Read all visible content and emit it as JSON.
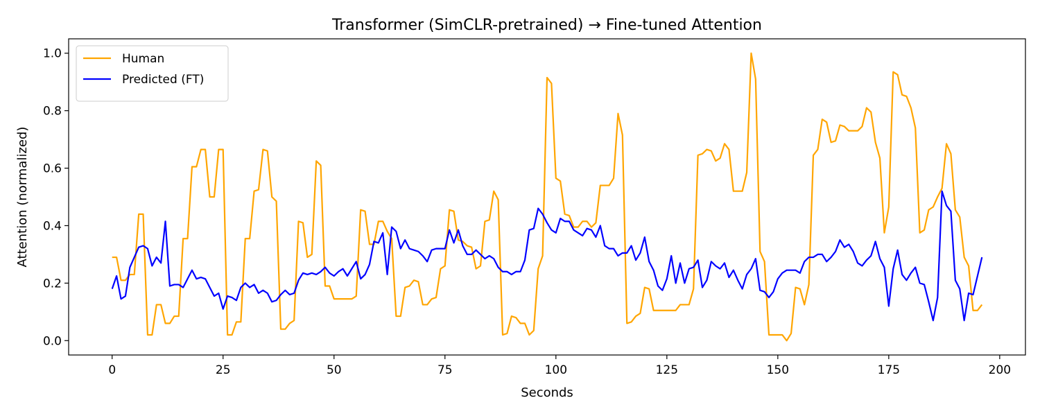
{
  "chart_data": {
    "type": "line",
    "title": "Transformer (SimCLR-pretrained) → Fine-tuned Attention",
    "xlabel": "Seconds",
    "ylabel": "Attention (normalized)",
    "x": [
      0,
      1,
      2,
      3,
      4,
      5,
      6,
      7,
      8,
      9,
      10,
      11,
      12,
      13,
      14,
      15,
      16,
      17,
      18,
      19,
      20,
      21,
      22,
      23,
      24,
      25,
      26,
      27,
      28,
      29,
      30,
      31,
      32,
      33,
      34,
      35,
      36,
      37,
      38,
      39,
      40,
      41,
      42,
      43,
      44,
      45,
      46,
      47,
      48,
      49,
      50,
      51,
      52,
      53,
      54,
      55,
      56,
      57,
      58,
      59,
      60,
      61,
      62,
      63,
      64,
      65,
      66,
      67,
      68,
      69,
      70,
      71,
      72,
      73,
      74,
      75,
      76,
      77,
      78,
      79,
      80,
      81,
      82,
      83,
      84,
      85,
      86,
      87,
      88,
      89,
      90,
      91,
      92,
      93,
      94,
      95,
      96,
      97,
      98,
      99,
      100,
      101,
      102,
      103,
      104,
      105,
      106,
      107,
      108,
      109,
      110,
      111,
      112,
      113,
      114,
      115,
      116,
      117,
      118,
      119,
      120,
      121,
      122,
      123,
      124,
      125,
      126,
      127,
      128,
      129,
      130,
      131,
      132,
      133,
      134,
      135,
      136,
      137,
      138,
      139,
      140,
      141,
      142,
      143,
      144,
      145,
      146,
      147,
      148,
      149,
      150,
      151,
      152,
      153,
      154,
      155,
      156,
      157,
      158,
      159,
      160,
      161,
      162,
      163,
      164,
      165,
      166,
      167,
      168,
      169,
      170,
      171,
      172,
      173,
      174,
      175,
      176,
      177,
      178,
      179,
      180,
      181,
      182,
      183,
      184,
      185,
      186,
      187,
      188,
      189,
      190,
      191,
      192,
      193,
      194,
      195,
      196
    ],
    "series": [
      {
        "name": "Human",
        "color": "#ffa500",
        "values": [
          0.29,
          0.29,
          0.21,
          0.21,
          0.23,
          0.23,
          0.44,
          0.44,
          0.02,
          0.02,
          0.125,
          0.125,
          0.06,
          0.06,
          0.085,
          0.085,
          0.355,
          0.355,
          0.605,
          0.605,
          0.665,
          0.665,
          0.5,
          0.5,
          0.665,
          0.665,
          0.02,
          0.02,
          0.065,
          0.065,
          0.355,
          0.355,
          0.52,
          0.525,
          0.665,
          0.66,
          0.5,
          0.485,
          0.04,
          0.04,
          0.06,
          0.07,
          0.415,
          0.41,
          0.29,
          0.3,
          0.625,
          0.61,
          0.19,
          0.19,
          0.145,
          0.145,
          0.145,
          0.145,
          0.145,
          0.155,
          0.455,
          0.45,
          0.335,
          0.335,
          0.415,
          0.415,
          0.38,
          0.355,
          0.085,
          0.085,
          0.185,
          0.19,
          0.21,
          0.205,
          0.125,
          0.125,
          0.145,
          0.15,
          0.25,
          0.26,
          0.455,
          0.45,
          0.35,
          0.345,
          0.33,
          0.325,
          0.25,
          0.26,
          0.415,
          0.42,
          0.52,
          0.49,
          0.02,
          0.025,
          0.085,
          0.08,
          0.06,
          0.06,
          0.02,
          0.035,
          0.25,
          0.295,
          0.915,
          0.895,
          0.565,
          0.555,
          0.44,
          0.435,
          0.395,
          0.395,
          0.415,
          0.415,
          0.395,
          0.41,
          0.54,
          0.54,
          0.54,
          0.565,
          0.79,
          0.715,
          0.06,
          0.065,
          0.085,
          0.095,
          0.185,
          0.18,
          0.105,
          0.105,
          0.105,
          0.105,
          0.105,
          0.105,
          0.125,
          0.125,
          0.125,
          0.18,
          0.645,
          0.65,
          0.665,
          0.66,
          0.625,
          0.635,
          0.685,
          0.665,
          0.52,
          0.52,
          0.52,
          0.585,
          1.0,
          0.91,
          0.31,
          0.275,
          0.02,
          0.02,
          0.02,
          0.02,
          0.0,
          0.025,
          0.185,
          0.18,
          0.125,
          0.195,
          0.645,
          0.665,
          0.77,
          0.76,
          0.69,
          0.695,
          0.75,
          0.745,
          0.73,
          0.73,
          0.73,
          0.745,
          0.81,
          0.795,
          0.69,
          0.635,
          0.375,
          0.465,
          0.935,
          0.925,
          0.855,
          0.85,
          0.81,
          0.74,
          0.375,
          0.385,
          0.455,
          0.465,
          0.5,
          0.53,
          0.685,
          0.65,
          0.455,
          0.43,
          0.29,
          0.26,
          0.105,
          0.105,
          0.125
        ]
      },
      {
        "name": "Predicted (FT)",
        "color": "#0000ff",
        "values": [
          0.18,
          0.225,
          0.145,
          0.155,
          0.255,
          0.29,
          0.325,
          0.33,
          0.32,
          0.26,
          0.29,
          0.27,
          0.415,
          0.19,
          0.195,
          0.195,
          0.185,
          0.215,
          0.245,
          0.215,
          0.22,
          0.215,
          0.185,
          0.155,
          0.165,
          0.11,
          0.155,
          0.15,
          0.14,
          0.185,
          0.2,
          0.185,
          0.195,
          0.165,
          0.175,
          0.165,
          0.135,
          0.14,
          0.16,
          0.175,
          0.16,
          0.165,
          0.21,
          0.235,
          0.23,
          0.235,
          0.23,
          0.24,
          0.255,
          0.235,
          0.225,
          0.24,
          0.25,
          0.225,
          0.25,
          0.275,
          0.215,
          0.23,
          0.265,
          0.345,
          0.34,
          0.375,
          0.23,
          0.395,
          0.38,
          0.32,
          0.35,
          0.32,
          0.315,
          0.31,
          0.295,
          0.275,
          0.315,
          0.32,
          0.32,
          0.32,
          0.385,
          0.34,
          0.385,
          0.33,
          0.3,
          0.3,
          0.315,
          0.3,
          0.285,
          0.295,
          0.285,
          0.255,
          0.24,
          0.24,
          0.23,
          0.24,
          0.24,
          0.28,
          0.385,
          0.39,
          0.46,
          0.44,
          0.41,
          0.385,
          0.375,
          0.425,
          0.415,
          0.415,
          0.385,
          0.375,
          0.365,
          0.39,
          0.385,
          0.36,
          0.4,
          0.33,
          0.32,
          0.32,
          0.295,
          0.305,
          0.305,
          0.33,
          0.28,
          0.305,
          0.36,
          0.275,
          0.245,
          0.19,
          0.175,
          0.215,
          0.295,
          0.2,
          0.27,
          0.2,
          0.25,
          0.255,
          0.28,
          0.185,
          0.21,
          0.275,
          0.26,
          0.25,
          0.27,
          0.22,
          0.245,
          0.21,
          0.18,
          0.23,
          0.25,
          0.285,
          0.175,
          0.17,
          0.15,
          0.17,
          0.215,
          0.235,
          0.245,
          0.245,
          0.245,
          0.235,
          0.275,
          0.29,
          0.29,
          0.3,
          0.3,
          0.275,
          0.29,
          0.31,
          0.35,
          0.325,
          0.335,
          0.31,
          0.27,
          0.26,
          0.28,
          0.295,
          0.345,
          0.285,
          0.255,
          0.12,
          0.25,
          0.315,
          0.23,
          0.21,
          0.235,
          0.255,
          0.2,
          0.195,
          0.135,
          0.07,
          0.15,
          0.52,
          0.47,
          0.45,
          0.21,
          0.18,
          0.07,
          0.165,
          0.16,
          0.225,
          0.29
        ]
      }
    ],
    "xlim": [
      -9.8,
      205.8
    ],
    "ylim": [
      -0.05,
      1.05
    ],
    "xticks": [
      0,
      25,
      50,
      75,
      100,
      125,
      150,
      175,
      200
    ],
    "yticks": [
      {
        "value": 0,
        "label": "0.0"
      },
      0.2,
      0.4,
      0.6,
      0.8,
      {
        "value": 1,
        "label": "1.0"
      }
    ],
    "legend": "upper left",
    "grid": false
  }
}
